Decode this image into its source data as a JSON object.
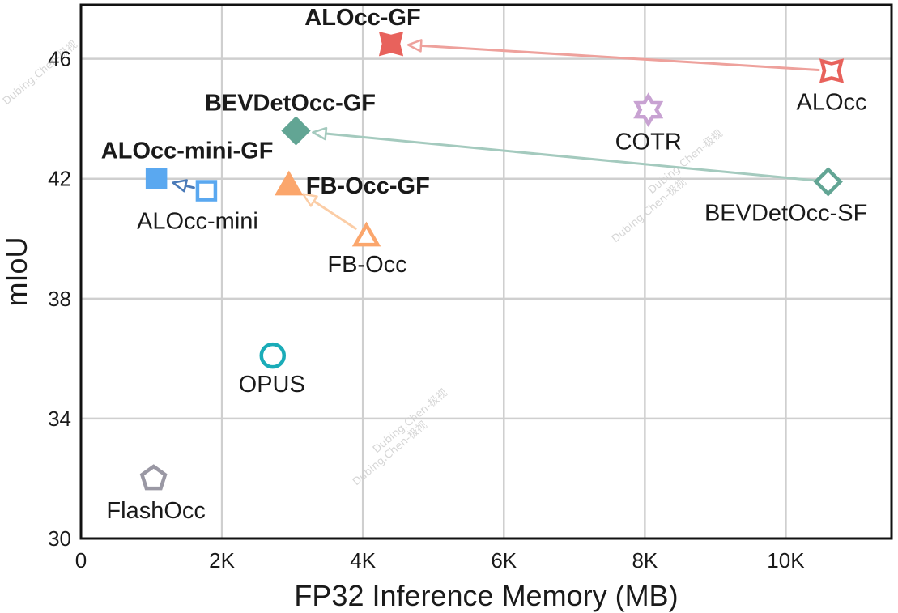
{
  "chart_data": {
    "type": "scatter",
    "title": "",
    "xlabel": "FP32 Inference Memory (MB)",
    "ylabel": "mIoU",
    "xlim": [
      0,
      11500
    ],
    "ylim": [
      30,
      47.8
    ],
    "xticks": [
      {
        "value": 0,
        "label": "0"
      },
      {
        "value": 2000,
        "label": "2K"
      },
      {
        "value": 4000,
        "label": "4K"
      },
      {
        "value": 6000,
        "label": "6K"
      },
      {
        "value": 8000,
        "label": "8K"
      },
      {
        "value": 10000,
        "label": "10K"
      }
    ],
    "yticks": [
      {
        "value": 30,
        "label": "30"
      },
      {
        "value": 34,
        "label": "34"
      },
      {
        "value": 38,
        "label": "38"
      },
      {
        "value": 42,
        "label": "42"
      },
      {
        "value": 46,
        "label": "46"
      }
    ],
    "grid": true,
    "points": [
      {
        "id": "alocc-gf",
        "name": "ALOcc-GF",
        "x": 4400,
        "y": 46.5,
        "marker": "star4",
        "filled": true,
        "color": "#e8625c",
        "bold": true,
        "label_pos": "above"
      },
      {
        "id": "alocc",
        "name": "ALOcc",
        "x": 10650,
        "y": 45.6,
        "marker": "star4",
        "filled": false,
        "color": "#e8625c",
        "bold": false,
        "label_pos": "below"
      },
      {
        "id": "bevdetocc-gf",
        "name": "BEVDetOcc-GF",
        "x": 3050,
        "y": 43.6,
        "marker": "diamond",
        "filled": true,
        "color": "#62a594",
        "bold": true,
        "label_pos": "above"
      },
      {
        "id": "bevdetocc-sf",
        "name": "BEVDetOcc-SF",
        "x": 10600,
        "y": 41.9,
        "marker": "diamond",
        "filled": false,
        "color": "#62a594",
        "bold": false,
        "label_pos": "below"
      },
      {
        "id": "cotr",
        "name": "COTR",
        "x": 8050,
        "y": 44.3,
        "marker": "star6",
        "filled": false,
        "color": "#c8a2d2",
        "bold": false,
        "label_pos": "below"
      },
      {
        "id": "alocc-mini-gf",
        "name": "ALOcc-mini-GF",
        "x": 1070,
        "y": 42.0,
        "marker": "square",
        "filled": true,
        "color": "#5aa8f0",
        "bold": true,
        "label_pos": "above"
      },
      {
        "id": "alocc-mini",
        "name": "ALOcc-mini",
        "x": 1780,
        "y": 41.6,
        "marker": "square",
        "filled": false,
        "color": "#5aa8f0",
        "bold": false,
        "label_pos": "below"
      },
      {
        "id": "fb-occ-gf",
        "name": "FB-Occ-GF",
        "x": 2950,
        "y": 41.8,
        "marker": "triangle",
        "filled": true,
        "color": "#fba66c",
        "bold": true,
        "label_pos": "right"
      },
      {
        "id": "fb-occ",
        "name": "FB-Occ",
        "x": 4050,
        "y": 40.1,
        "marker": "triangle",
        "filled": false,
        "color": "#fba66c",
        "bold": false,
        "label_pos": "below"
      },
      {
        "id": "opus",
        "name": "OPUS",
        "x": 2720,
        "y": 36.1,
        "marker": "circle",
        "filled": false,
        "color": "#1aacb8",
        "bold": false,
        "label_pos": "below"
      },
      {
        "id": "flashocc",
        "name": "FlashOcc",
        "x": 1030,
        "y": 32.0,
        "marker": "pentagon",
        "filled": false,
        "color": "#9a98a4",
        "bold": false,
        "label_pos": "below"
      }
    ],
    "arrows": [
      {
        "from": "alocc",
        "to": "alocc-gf",
        "color": "#eea19c"
      },
      {
        "from": "bevdetocc-sf",
        "to": "bevdetocc-gf",
        "color": "#a4cabe"
      },
      {
        "from": "alocc-mini",
        "to": "alocc-mini-gf",
        "color": "#4a7ab8"
      },
      {
        "from": "fb-occ",
        "to": "fb-occ-gf",
        "color": "#fbcda6"
      }
    ],
    "watermark": "Dubing.Chen-极视"
  }
}
